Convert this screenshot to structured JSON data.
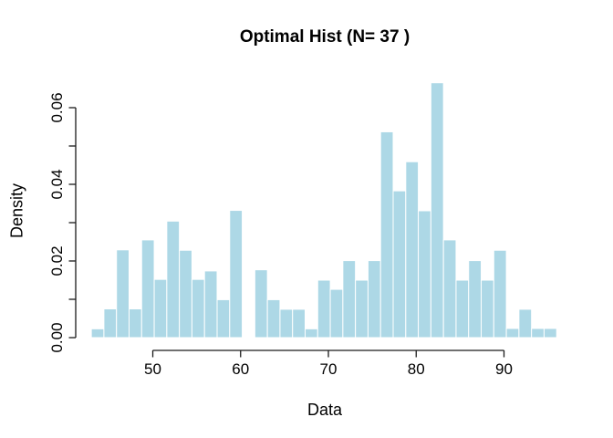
{
  "chart_data": {
    "type": "bar",
    "subtype": "histogram",
    "title": "Optimal Hist (N= 37 )",
    "xlabel": "Data",
    "ylabel": "Density",
    "bin_start": 43.0,
    "bin_width": 1.4324,
    "n_bins": 37,
    "densities": [
      0.0023,
      0.0075,
      0.0229,
      0.0075,
      0.0255,
      0.0152,
      0.0304,
      0.0228,
      0.0152,
      0.0174,
      0.0099,
      0.0332,
      0,
      0.0177,
      0.0099,
      0.0074,
      0.0074,
      0.0023,
      0.015,
      0.0126,
      0.0201,
      0.015,
      0.0201,
      0.0537,
      0.0383,
      0.0459,
      0.0331,
      0.0665,
      0.0255,
      0.015,
      0.0201,
      0.015,
      0.0228,
      0.0024,
      0.0074,
      0.0024,
      0.0024
    ],
    "x_tick_values": [
      50,
      60,
      70,
      80,
      90
    ],
    "x_tick_labels": [
      "50",
      "60",
      "70",
      "80",
      "90"
    ],
    "y_tick_values": [
      0,
      0.01,
      0.02,
      0.03,
      0.04,
      0.05,
      0.06
    ],
    "y_tick_labels": [
      "0.00",
      "",
      "0.02",
      "",
      "0.04",
      "",
      "0.06"
    ],
    "xlim": [
      43.0,
      96.0
    ],
    "ylim": [
      0,
      0.0665
    ],
    "grid": "off",
    "legend": "none",
    "bar_fill": "#ADD8E6",
    "bar_border": "#FFFFFF",
    "axis_color": "#1a1a1a",
    "text_color": "#000000"
  }
}
